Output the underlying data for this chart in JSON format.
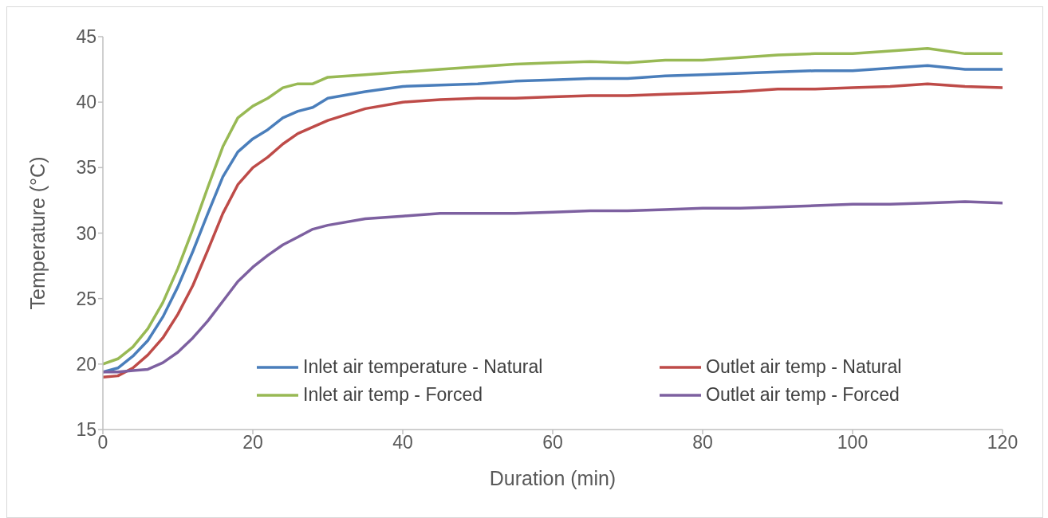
{
  "chart_data": {
    "type": "line",
    "xlabel": "Duration (min)",
    "ylabel": "Temperature (°C)",
    "x": [
      0,
      2,
      4,
      6,
      8,
      10,
      12,
      14,
      16,
      18,
      20,
      22,
      24,
      26,
      28,
      30,
      35,
      40,
      45,
      50,
      55,
      60,
      65,
      70,
      75,
      80,
      85,
      90,
      95,
      100,
      105,
      110,
      115,
      120
    ],
    "series": [
      {
        "name": "Inlet air temperature - Natural",
        "color": "#4a7ebb",
        "values": [
          19.4,
          19.7,
          20.6,
          21.8,
          23.6,
          25.9,
          28.6,
          31.5,
          34.3,
          36.2,
          37.2,
          37.9,
          38.8,
          39.3,
          39.6,
          40.3,
          40.8,
          41.2,
          41.3,
          41.4,
          41.6,
          41.7,
          41.8,
          41.8,
          42.0,
          42.1,
          42.2,
          42.3,
          42.4,
          42.4,
          42.6,
          42.8,
          42.5,
          42.5
        ]
      },
      {
        "name": "Outlet air temp - Natural",
        "color": "#be4b48",
        "values": [
          19.0,
          19.1,
          19.7,
          20.7,
          22.0,
          23.8,
          26.0,
          28.7,
          31.5,
          33.7,
          35.0,
          35.8,
          36.8,
          37.6,
          38.1,
          38.6,
          39.5,
          40.0,
          40.2,
          40.3,
          40.3,
          40.4,
          40.5,
          40.5,
          40.6,
          40.7,
          40.8,
          41.0,
          41.0,
          41.1,
          41.2,
          41.4,
          41.2,
          41.1
        ]
      },
      {
        "name": "Inlet air temp - Forced",
        "color": "#98b954",
        "values": [
          20.0,
          20.4,
          21.3,
          22.7,
          24.7,
          27.3,
          30.3,
          33.5,
          36.6,
          38.8,
          39.7,
          40.3,
          41.1,
          41.4,
          41.4,
          41.9,
          42.1,
          42.3,
          42.5,
          42.7,
          42.9,
          43.0,
          43.1,
          43.0,
          43.2,
          43.2,
          43.4,
          43.6,
          43.7,
          43.7,
          43.9,
          44.1,
          43.7,
          43.7
        ]
      },
      {
        "name": "Outlet air temp - Forced",
        "color": "#7d60a0",
        "values": [
          19.4,
          19.4,
          19.5,
          19.6,
          20.1,
          20.9,
          22.0,
          23.3,
          24.8,
          26.3,
          27.4,
          28.3,
          29.1,
          29.7,
          30.3,
          30.6,
          31.1,
          31.3,
          31.5,
          31.5,
          31.5,
          31.6,
          31.7,
          31.7,
          31.8,
          31.9,
          31.9,
          32.0,
          32.1,
          32.2,
          32.2,
          32.3,
          32.4,
          32.3
        ]
      }
    ],
    "xlim": [
      0,
      120
    ],
    "xticks": [
      0,
      20,
      40,
      60,
      80,
      100,
      120
    ],
    "ylim": [
      15,
      45
    ],
    "yticks": [
      15,
      20,
      25,
      30,
      35,
      40,
      45
    ],
    "grid": false,
    "legend": "bottom right",
    "marker": "none",
    "line_style": "solid"
  }
}
